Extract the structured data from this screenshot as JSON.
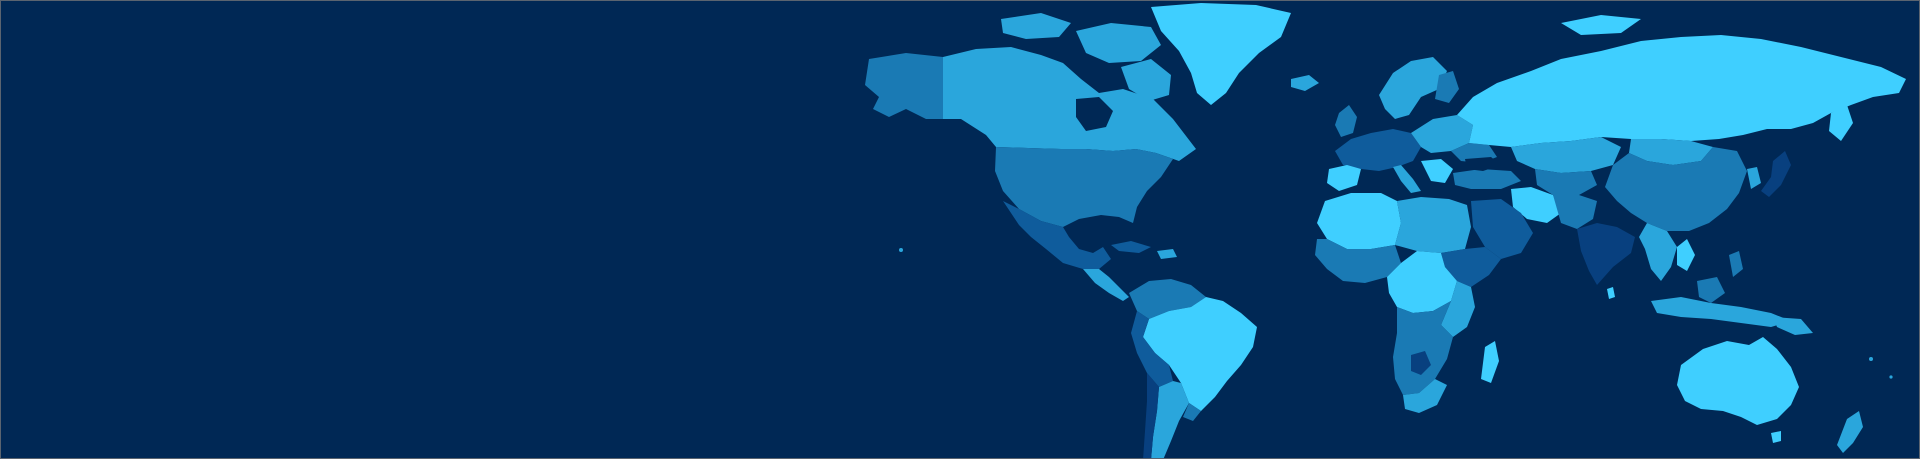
{
  "banner": {
    "background_color": "#002855",
    "border_color": "#5a6470"
  },
  "map": {
    "type": "choropleth-world-map",
    "palette": [
      "#3fcfff",
      "#2aa6dc",
      "#1a7ab4",
      "#0f5c9c",
      "#08407f"
    ]
  }
}
